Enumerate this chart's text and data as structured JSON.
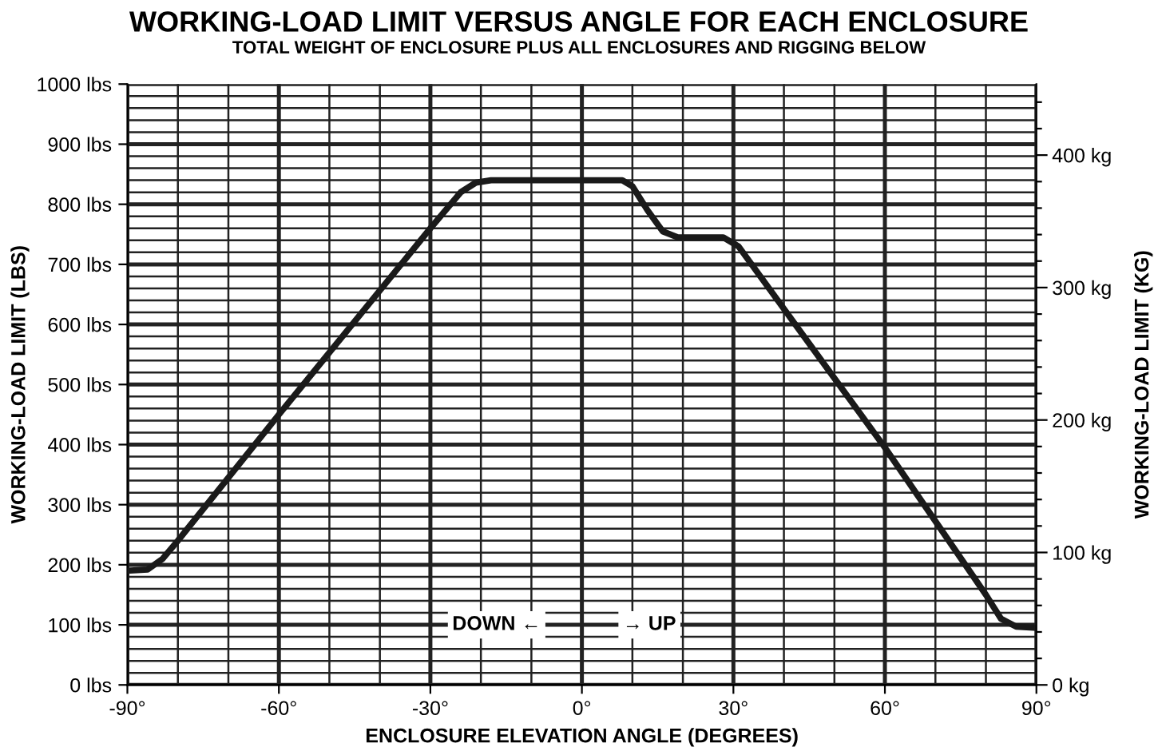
{
  "chart_data": {
    "type": "line",
    "title": "WORKING-LOAD LIMIT VERSUS ANGLE FOR EACH ENCLOSURE",
    "subtitle": "TOTAL WEIGHT OF ENCLOSURE PLUS ALL ENCLOSURES AND RIGGING BELOW",
    "xlabel": "ENCLOSURE ELEVATION ANGLE (DEGREES)",
    "ylabel": "WORKING-LOAD LIMIT (LBS)",
    "y2label": "WORKING-LOAD LIMIT (KG)",
    "x": [
      -90,
      -86,
      -83,
      -80,
      -60,
      -30,
      -24,
      -21,
      -18,
      8,
      10,
      13,
      16,
      19,
      28,
      31,
      60,
      80,
      83,
      86,
      90
    ],
    "series": [
      {
        "color": "#1a1a1a",
        "values": [
          190,
          192,
          210,
          240,
          450,
          760,
          820,
          836,
          840,
          840,
          830,
          790,
          755,
          745,
          745,
          730,
          395,
          150,
          110,
          97,
          95
        ]
      }
    ],
    "xlim": [
      -90,
      90
    ],
    "xticks": [
      {
        "value": -90,
        "label": "-90°"
      },
      {
        "value": -80,
        "label": null
      },
      {
        "value": -70,
        "label": null
      },
      {
        "value": -60,
        "label": "-60°"
      },
      {
        "value": -50,
        "label": null
      },
      {
        "value": -40,
        "label": null
      },
      {
        "value": -30,
        "label": "-30°"
      },
      {
        "value": -20,
        "label": null
      },
      {
        "value": -10,
        "label": null
      },
      {
        "value": 0,
        "label": "0°"
      },
      {
        "value": 10,
        "label": null
      },
      {
        "value": 20,
        "label": null
      },
      {
        "value": 30,
        "label": "30°"
      },
      {
        "value": 40,
        "label": null
      },
      {
        "value": 50,
        "label": null
      },
      {
        "value": 60,
        "label": "60°"
      },
      {
        "value": 70,
        "label": null
      },
      {
        "value": 80,
        "label": null
      },
      {
        "value": 90,
        "label": "90°"
      }
    ],
    "ylim": [
      0,
      1000
    ],
    "yticks": [
      {
        "value": 0,
        "label": "0 lbs"
      },
      {
        "value": 20,
        "label": null
      },
      {
        "value": 40,
        "label": null
      },
      {
        "value": 60,
        "label": null
      },
      {
        "value": 80,
        "label": null
      },
      {
        "value": 100,
        "label": "100 lbs"
      },
      {
        "value": 120,
        "label": null
      },
      {
        "value": 140,
        "label": null
      },
      {
        "value": 160,
        "label": null
      },
      {
        "value": 180,
        "label": null
      },
      {
        "value": 200,
        "label": "200 lbs"
      },
      {
        "value": 220,
        "label": null
      },
      {
        "value": 240,
        "label": null
      },
      {
        "value": 260,
        "label": null
      },
      {
        "value": 280,
        "label": null
      },
      {
        "value": 300,
        "label": "300 lbs"
      },
      {
        "value": 320,
        "label": null
      },
      {
        "value": 340,
        "label": null
      },
      {
        "value": 360,
        "label": null
      },
      {
        "value": 380,
        "label": null
      },
      {
        "value": 400,
        "label": "400 lbs"
      },
      {
        "value": 420,
        "label": null
      },
      {
        "value": 440,
        "label": null
      },
      {
        "value": 460,
        "label": null
      },
      {
        "value": 480,
        "label": null
      },
      {
        "value": 500,
        "label": "500 lbs"
      },
      {
        "value": 520,
        "label": null
      },
      {
        "value": 540,
        "label": null
      },
      {
        "value": 560,
        "label": null
      },
      {
        "value": 580,
        "label": null
      },
      {
        "value": 600,
        "label": "600 lbs"
      },
      {
        "value": 620,
        "label": null
      },
      {
        "value": 640,
        "label": null
      },
      {
        "value": 660,
        "label": null
      },
      {
        "value": 680,
        "label": null
      },
      {
        "value": 700,
        "label": "700 lbs"
      },
      {
        "value": 720,
        "label": null
      },
      {
        "value": 740,
        "label": null
      },
      {
        "value": 760,
        "label": null
      },
      {
        "value": 780,
        "label": null
      },
      {
        "value": 800,
        "label": "800 lbs"
      },
      {
        "value": 820,
        "label": null
      },
      {
        "value": 840,
        "label": null
      },
      {
        "value": 860,
        "label": null
      },
      {
        "value": 880,
        "label": null
      },
      {
        "value": 900,
        "label": "900 lbs"
      },
      {
        "value": 920,
        "label": null
      },
      {
        "value": 940,
        "label": null
      },
      {
        "value": 960,
        "label": null
      },
      {
        "value": 980,
        "label": null
      },
      {
        "value": 1000,
        "label": "1000 lbs"
      }
    ],
    "y2lim": [
      0,
      453.6
    ],
    "y2ticks": [
      {
        "value": 0,
        "label": "0 kg"
      },
      {
        "value": 20,
        "label": null
      },
      {
        "value": 40,
        "label": null
      },
      {
        "value": 60,
        "label": null
      },
      {
        "value": 80,
        "label": null
      },
      {
        "value": 100,
        "label": "100 kg"
      },
      {
        "value": 120,
        "label": null
      },
      {
        "value": 140,
        "label": null
      },
      {
        "value": 160,
        "label": null
      },
      {
        "value": 180,
        "label": null
      },
      {
        "value": 200,
        "label": "200 kg"
      },
      {
        "value": 220,
        "label": null
      },
      {
        "value": 240,
        "label": null
      },
      {
        "value": 260,
        "label": null
      },
      {
        "value": 280,
        "label": null
      },
      {
        "value": 300,
        "label": "300 kg"
      },
      {
        "value": 320,
        "label": null
      },
      {
        "value": 340,
        "label": null
      },
      {
        "value": 360,
        "label": null
      },
      {
        "value": 380,
        "label": null
      },
      {
        "value": 400,
        "label": "400 kg"
      },
      {
        "value": 420,
        "label": null
      },
      {
        "value": 440,
        "label": null
      }
    ],
    "annotations": [
      "DOWN ←",
      "→ UP"
    ],
    "grid": true,
    "line_style": "solid",
    "marker": "none"
  }
}
